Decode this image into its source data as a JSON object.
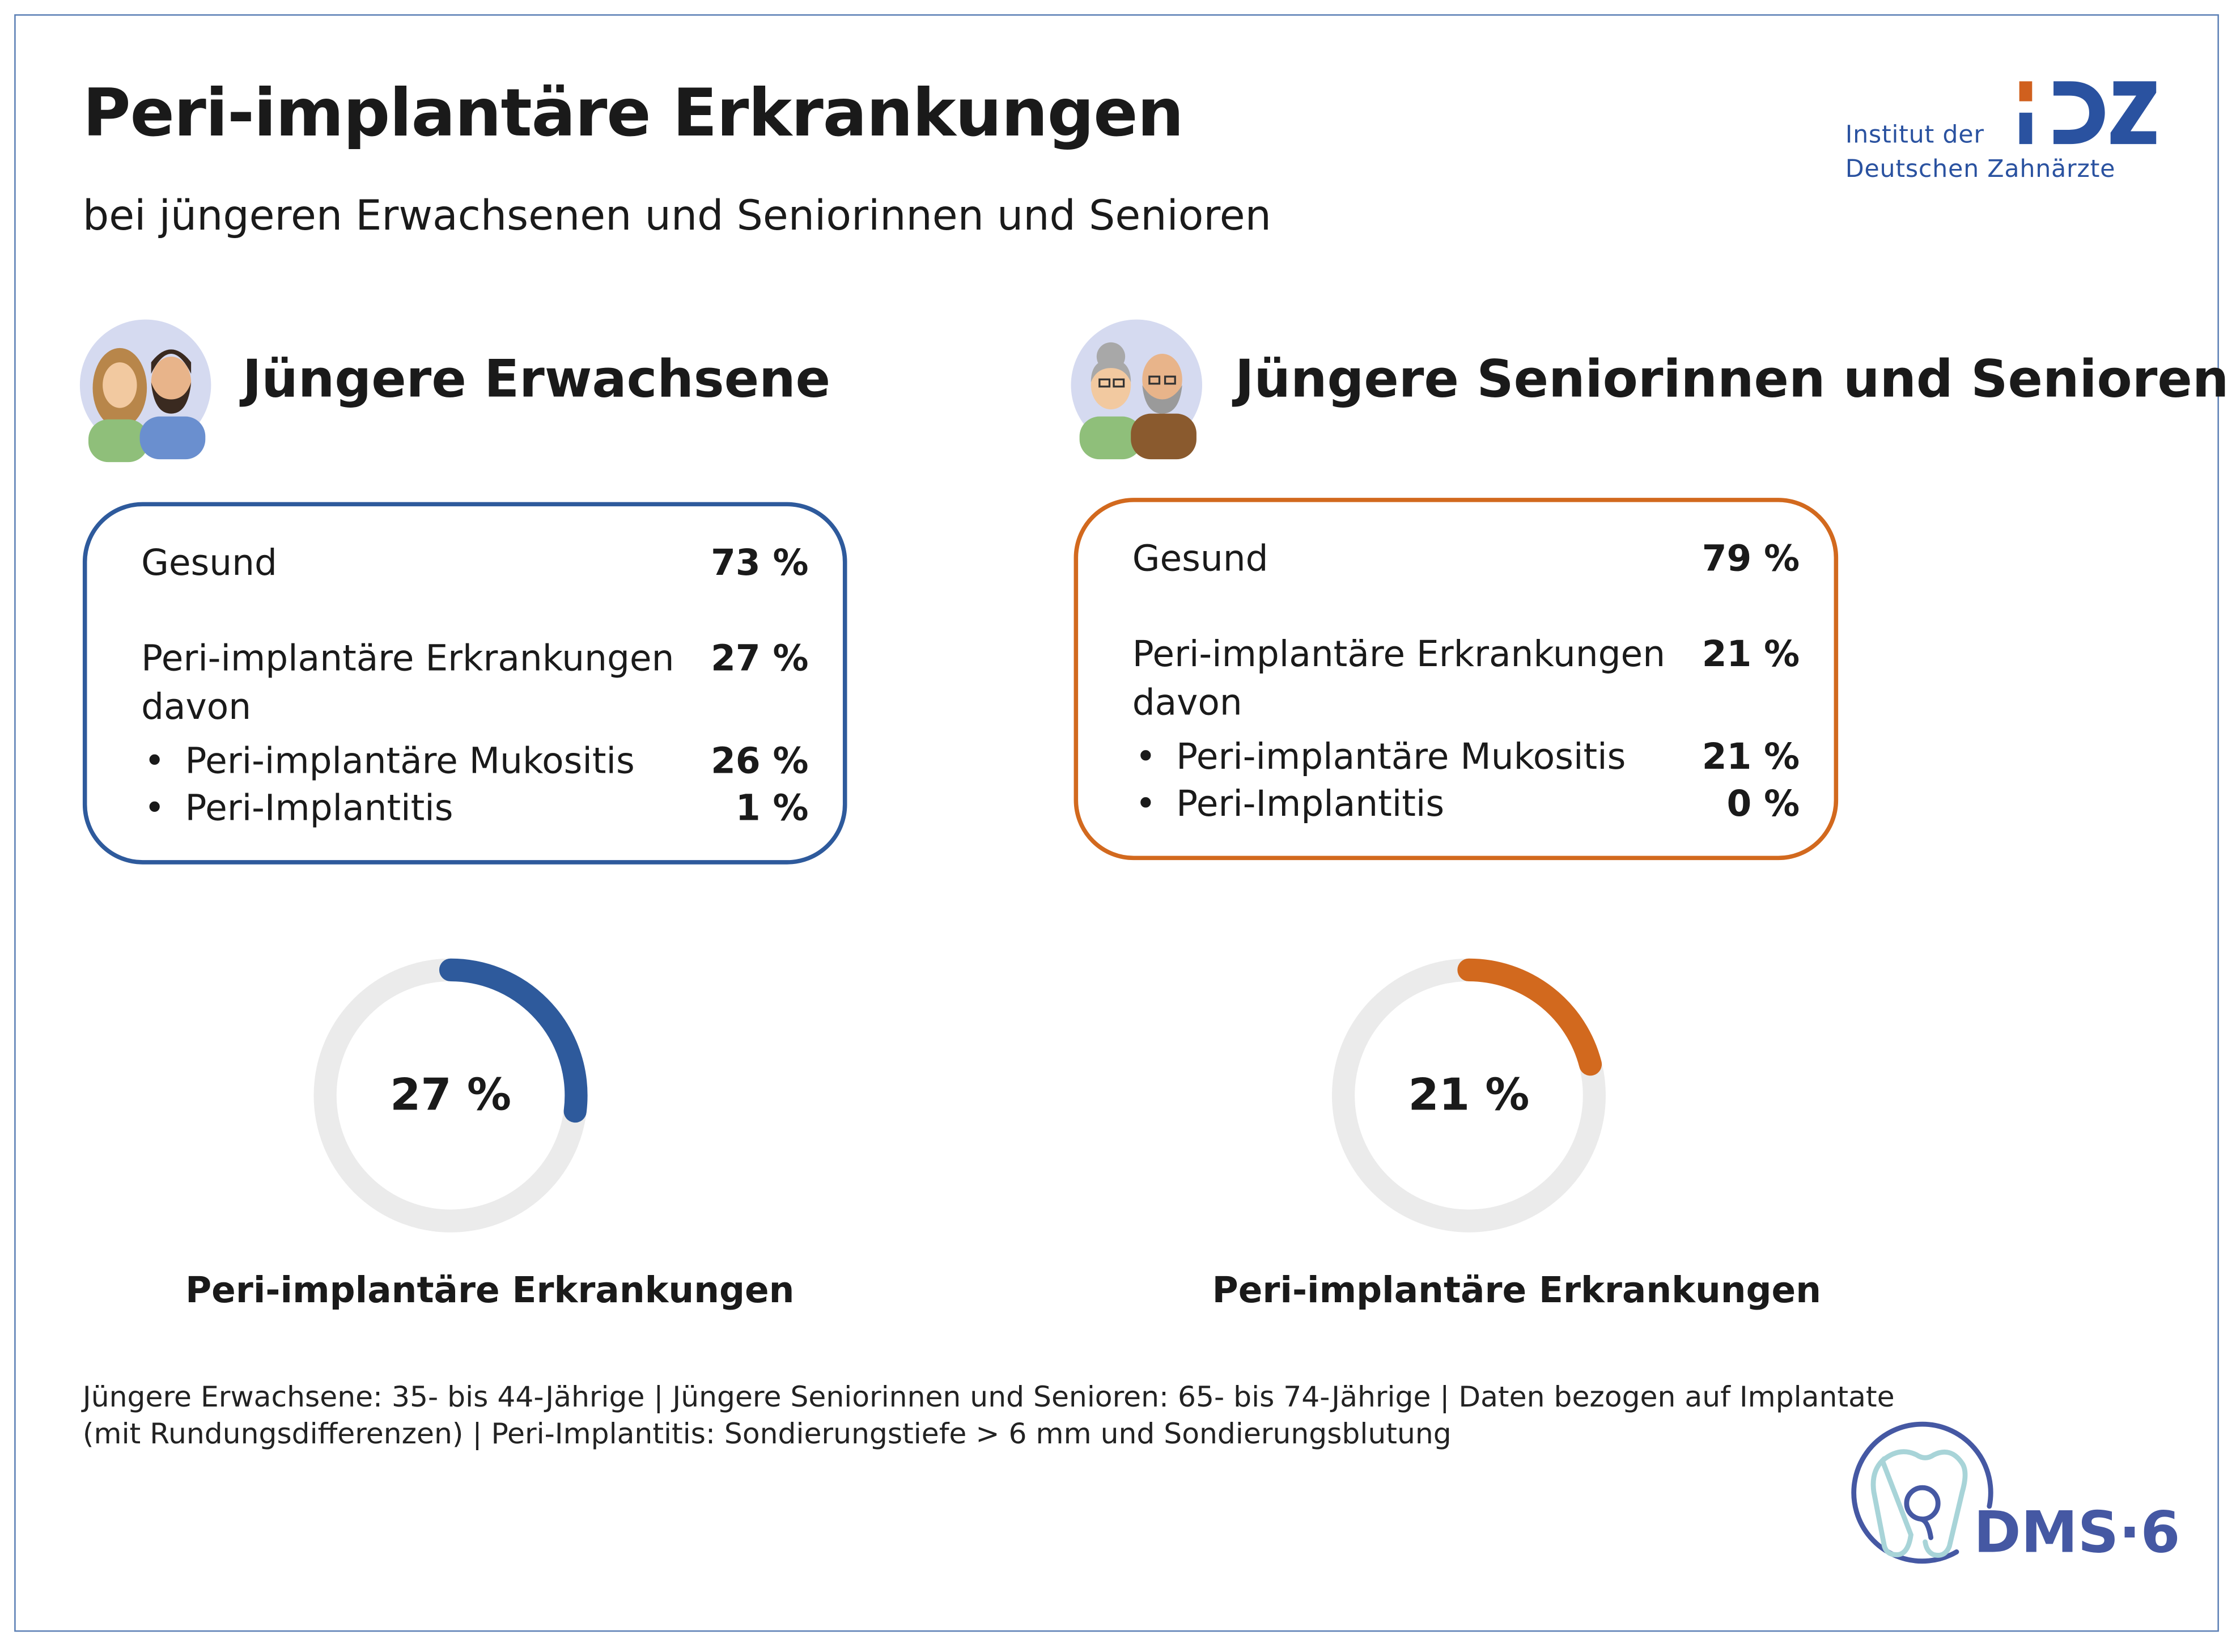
{
  "title": "Peri-implantäre Erkrankungen",
  "subtitle": "bei jüngeren Erwachsenen und Seniorinnen und Senioren",
  "logo": {
    "line1": "Institut der",
    "line2": "Deutschen Zahnärzte",
    "mark": "IDZ"
  },
  "groups": [
    {
      "heading": "Jüngere Erwachsene",
      "color": "#2e5a9c",
      "rows": {
        "healthy_label": "Gesund",
        "healthy_value": "73 %",
        "disease_label": "Peri-implantäre Erkrankungen",
        "disease_value": "27 %",
        "davon": "davon",
        "mucositis_label": "Peri-implantäre Mukositis",
        "mucositis_value": "26 %",
        "implantitis_label": "Peri-Implantitis",
        "implantitis_value": "1 %"
      },
      "donut_value": 27,
      "donut_label": "27 %",
      "caption": "Peri-implantäre Erkrankungen"
    },
    {
      "heading": "Jüngere Seniorinnen und Senioren",
      "color": "#d2691e",
      "rows": {
        "healthy_label": "Gesund",
        "healthy_value": "79 %",
        "disease_label": "Peri-implantäre Erkrankungen",
        "disease_value": "21 %",
        "davon": "davon",
        "mucositis_label": "Peri-implantäre Mukositis",
        "mucositis_value": "21 %",
        "implantitis_label": "Peri-Implantitis",
        "implantitis_value": "0 %"
      },
      "donut_value": 21,
      "donut_label": "21 %",
      "caption": "Peri-implantäre Erkrankungen"
    }
  ],
  "bullet": "•",
  "footnote": {
    "line1": "Jüngere Erwachsene: 35- bis 44-Jährige | Jüngere Seniorinnen und Senioren: 65- bis 74-Jährige | Daten bezogen auf Implantate",
    "line2": "(mit Rundungsdifferenzen) | Peri-Implantitis: Sondierungstiefe > 6 mm und Sondierungsblutung"
  },
  "dms_logo": {
    "text": "DMS·6"
  }
}
